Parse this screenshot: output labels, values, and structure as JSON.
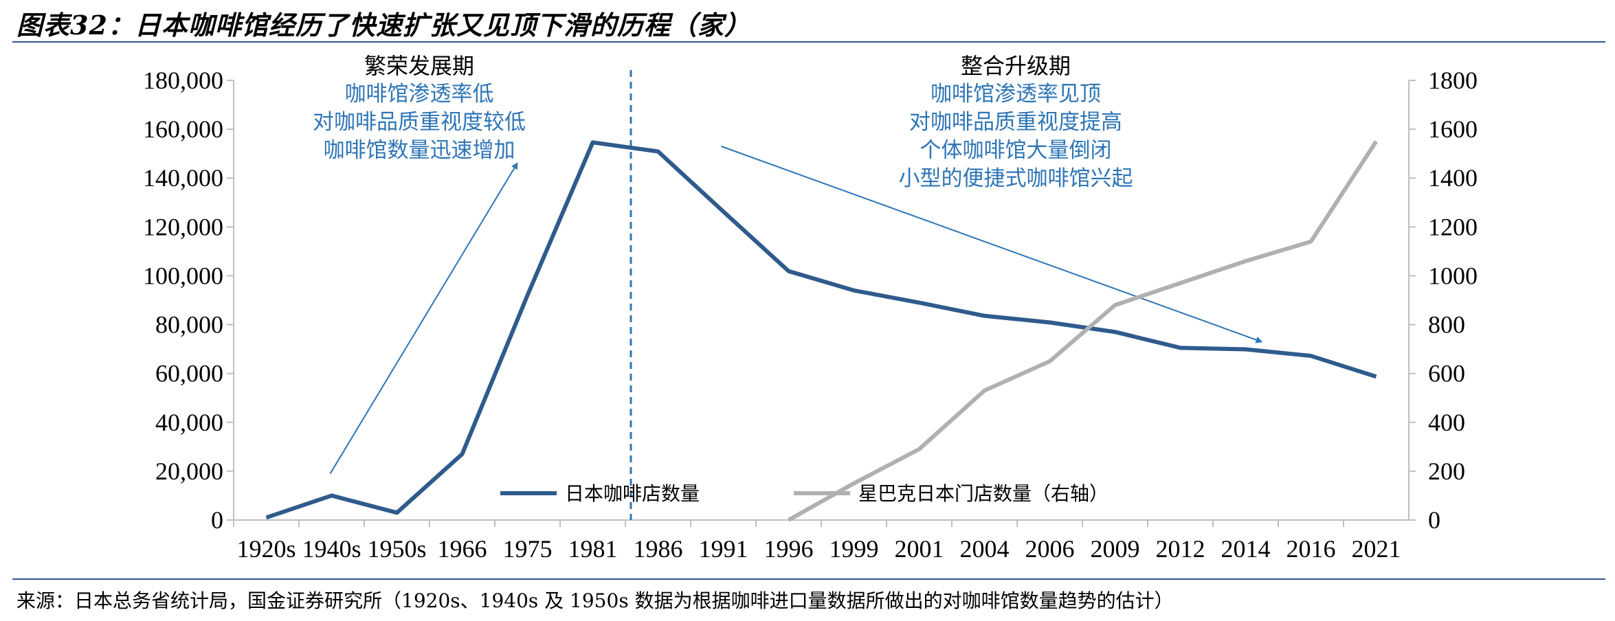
{
  "title": "图表32：日本咖啡馆经历了快速扩张又见顶下滑的历程（家）",
  "source": "来源：日本总务省统计局，国金证券研究所（1920s、1940s 及 1950s 数据为根据咖啡进口量数据所做出的对咖啡馆数量趋势的估计）",
  "colors": {
    "series_japan": "#2f5b8c",
    "series_starbucks": "#b0b0b0",
    "annotation": "#2e75b6",
    "divider": "#2e75b6",
    "rule": "#2f5597"
  },
  "annotations": {
    "phase1": {
      "title": "繁荣发展期",
      "lines": [
        "咖啡馆渗透率低",
        "对咖啡品质重视度较低",
        "咖啡馆数量迅速增加"
      ]
    },
    "phase2": {
      "title": "整合升级期",
      "lines": [
        "咖啡馆渗透率见顶",
        "对咖啡品质重视度提高",
        "个体咖啡馆大量倒闭",
        "小型的便捷式咖啡馆兴起"
      ]
    }
  },
  "chart_data": {
    "type": "line",
    "categories": [
      "1920s",
      "1940s",
      "1950s",
      "1966",
      "1975",
      "1981",
      "1986",
      "1991",
      "1996",
      "1999",
      "2001",
      "2004",
      "2006",
      "2009",
      "2012",
      "2014",
      "2016",
      "2021"
    ],
    "y_left": {
      "range": [
        0,
        180000
      ],
      "ticks": [
        "0",
        "20,000",
        "40,000",
        "60,000",
        "80,000",
        "100,000",
        "120,000",
        "140,000",
        "160,000",
        "180,000"
      ]
    },
    "y_right": {
      "range": [
        0,
        1800
      ],
      "ticks": [
        "0",
        "200",
        "400",
        "600",
        "800",
        "1000",
        "1200",
        "1400",
        "1600",
        "1800"
      ]
    },
    "series": [
      {
        "name": "日本咖啡店数量",
        "axis": "left",
        "values": [
          1000,
          10000,
          3000,
          27000,
          92000,
          154600,
          150900,
          126300,
          101900,
          94000,
          89000,
          83600,
          80900,
          77000,
          70500,
          69900,
          67200,
          58700
        ]
      },
      {
        "name": "星巴克日本门店数量（右轴）",
        "axis": "right",
        "values": [
          null,
          null,
          null,
          null,
          null,
          null,
          null,
          null,
          0,
          150,
          290,
          530,
          650,
          880,
          970,
          1060,
          1140,
          1550
        ]
      }
    ],
    "divider_between": [
      "1981",
      "1986"
    ],
    "legend": "bottom",
    "grid": false
  }
}
